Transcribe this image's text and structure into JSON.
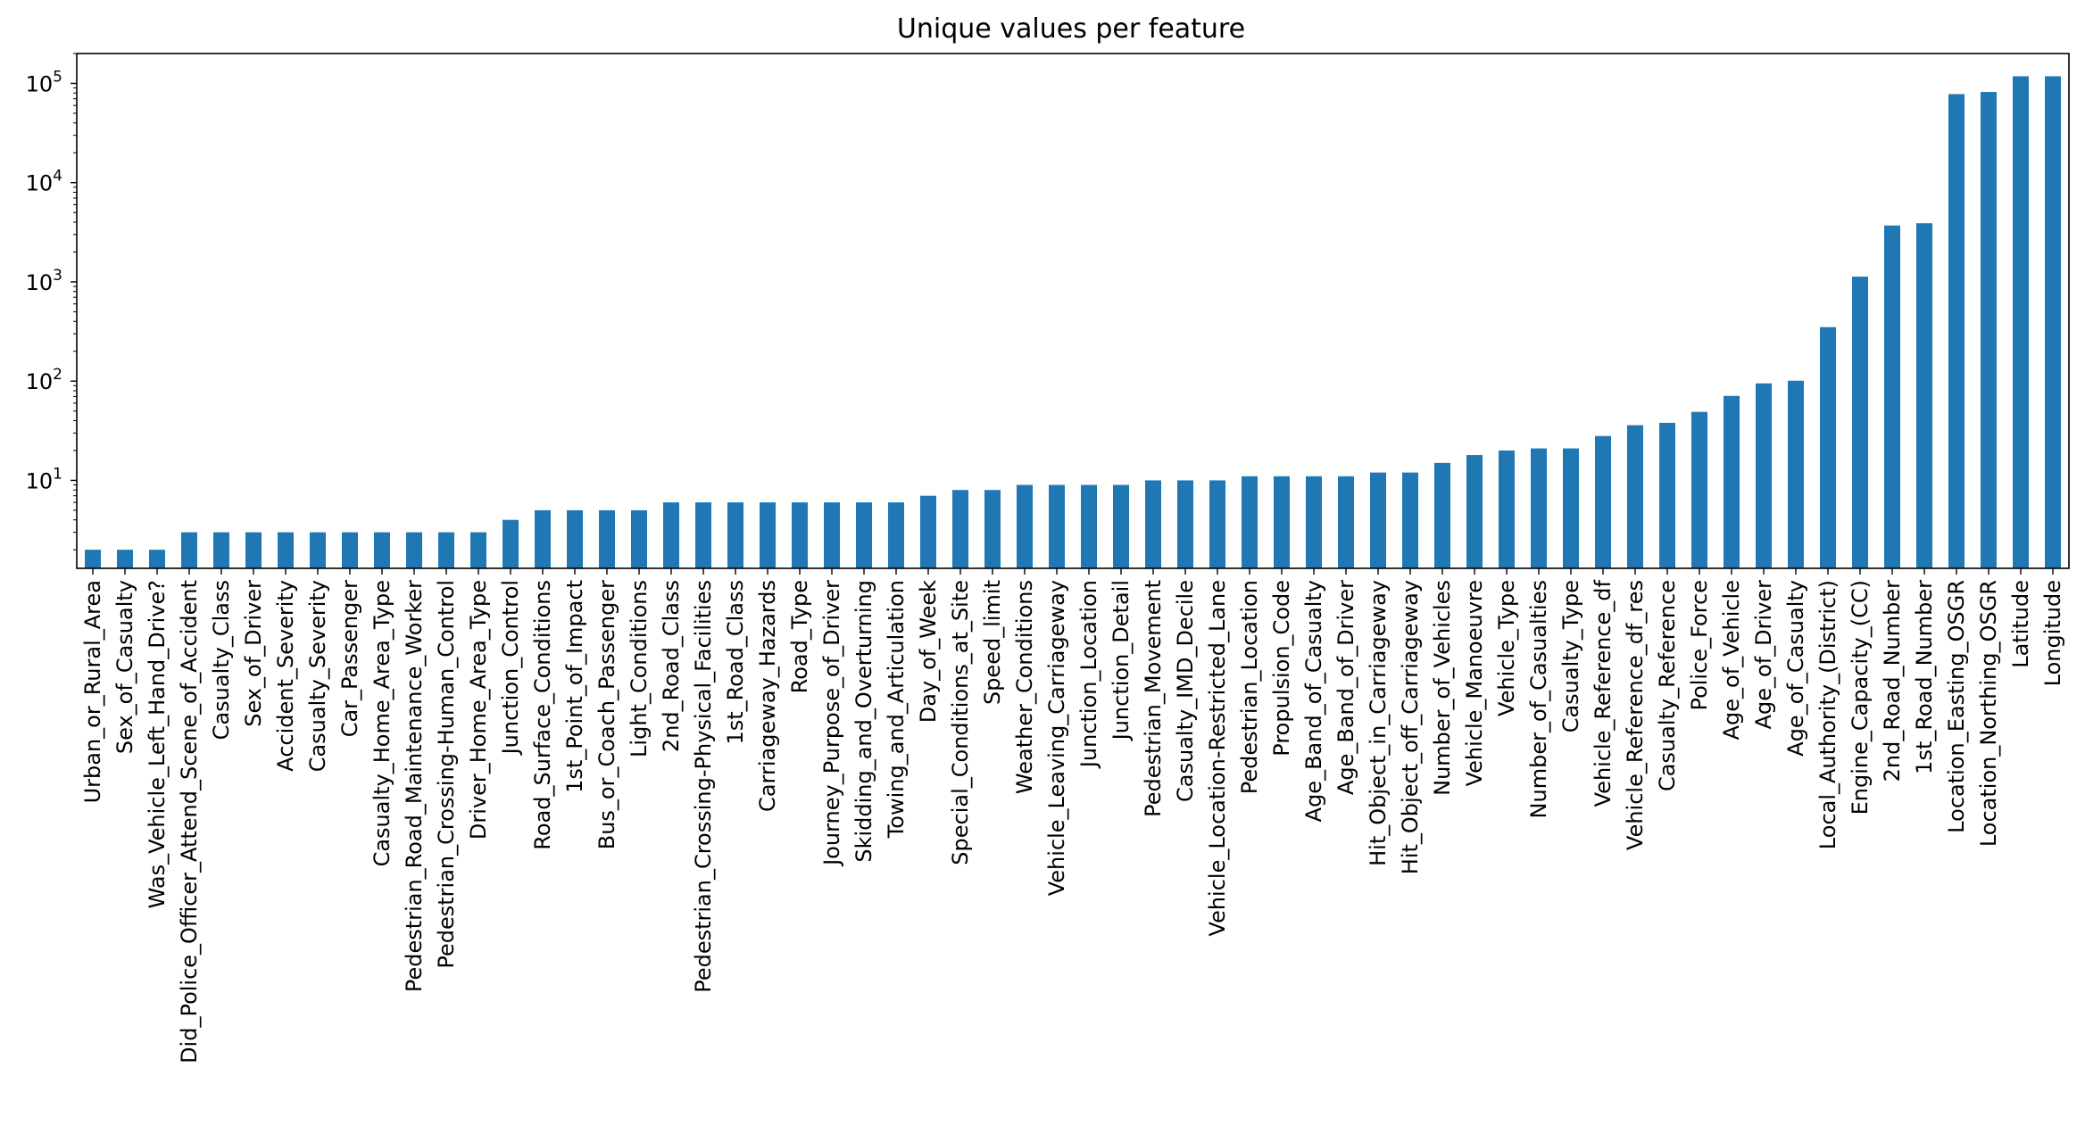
{
  "chart_data": {
    "type": "bar",
    "title": "Unique values per feature",
    "xlabel": "",
    "ylabel": "",
    "yscale": "log",
    "ylim": [
      1.3,
      200000
    ],
    "grid": false,
    "color": "#1f77b4",
    "yticks": [
      {
        "value": 10,
        "base": "10",
        "exp": "1"
      },
      {
        "value": 100,
        "base": "10",
        "exp": "2"
      },
      {
        "value": 1000,
        "base": "10",
        "exp": "3"
      },
      {
        "value": 10000,
        "base": "10",
        "exp": "4"
      },
      {
        "value": 100000,
        "base": "10",
        "exp": "5"
      }
    ],
    "categories": [
      "Urban_or_Rural_Area",
      "Sex_of_Casualty",
      "Was_Vehicle_Left_Hand_Drive?",
      "Did_Police_Officer_Attend_Scene_of_Accident",
      "Casualty_Class",
      "Sex_of_Driver",
      "Accident_Severity",
      "Casualty_Severity",
      "Car_Passenger",
      "Casualty_Home_Area_Type",
      "Pedestrian_Road_Maintenance_Worker",
      "Pedestrian_Crossing-Human_Control",
      "Driver_Home_Area_Type",
      "Junction_Control",
      "Road_Surface_Conditions",
      "1st_Point_of_Impact",
      "Bus_or_Coach_Passenger",
      "Light_Conditions",
      "2nd_Road_Class",
      "Pedestrian_Crossing-Physical_Facilities",
      "1st_Road_Class",
      "Carriageway_Hazards",
      "Road_Type",
      "Journey_Purpose_of_Driver",
      "Skidding_and_Overturning",
      "Towing_and_Articulation",
      "Day_of_Week",
      "Special_Conditions_at_Site",
      "Speed_limit",
      "Weather_Conditions",
      "Vehicle_Leaving_Carriageway",
      "Junction_Location",
      "Junction_Detail",
      "Pedestrian_Movement",
      "Casualty_IMD_Decile",
      "Vehicle_Location-Restricted_Lane",
      "Pedestrian_Location",
      "Propulsion_Code",
      "Age_Band_of_Casualty",
      "Age_Band_of_Driver",
      "Hit_Object_in_Carriageway",
      "Hit_Object_off_Carriageway",
      "Number_of_Vehicles",
      "Vehicle_Manoeuvre",
      "Vehicle_Type",
      "Number_of_Casualties",
      "Casualty_Type",
      "Vehicle_Reference_df",
      "Vehicle_Reference_df_res",
      "Casualty_Reference",
      "Police_Force",
      "Age_of_Vehicle",
      "Age_of_Driver",
      "Age_of_Casualty",
      "Local_Authority_(District)",
      "Engine_Capacity_(CC)",
      "2nd_Road_Number",
      "1st_Road_Number",
      "Location_Easting_OSGR",
      "Location_Northing_OSGR",
      "Latitude",
      "Longitude"
    ],
    "values": [
      2,
      2,
      2,
      3,
      3,
      3,
      3,
      3,
      3,
      3,
      3,
      3,
      3,
      4,
      5,
      5,
      5,
      5,
      6,
      6,
      6,
      6,
      6,
      6,
      6,
      6,
      7,
      8,
      8,
      9,
      9,
      9,
      9,
      10,
      10,
      10,
      11,
      11,
      11,
      11,
      12,
      12,
      15,
      18,
      20,
      21,
      21,
      28,
      36,
      38,
      49,
      71,
      95,
      101,
      350,
      1130,
      3700,
      3900,
      78000,
      82000,
      118000,
      118000
    ]
  }
}
